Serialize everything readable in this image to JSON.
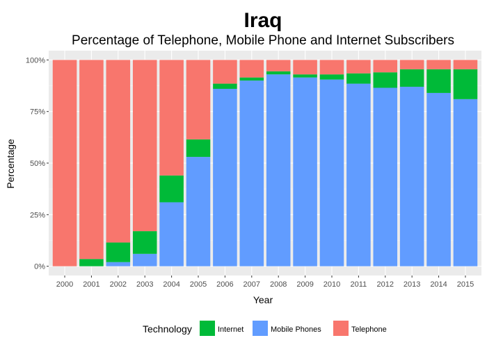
{
  "chart_data": {
    "type": "bar",
    "stacked": true,
    "title": "Iraq",
    "subtitle": "Percentage of Telephone, Mobile Phone and Internet Subscribers",
    "xlabel": "Year",
    "ylabel": "Percentage",
    "ylim": [
      0,
      1
    ],
    "yticks": [
      0,
      0.25,
      0.5,
      0.75,
      1.0
    ],
    "ytick_labels": [
      "0%",
      "25%",
      "50%",
      "75%",
      "100%"
    ],
    "categories": [
      "2000",
      "2001",
      "2002",
      "2003",
      "2004",
      "2005",
      "2006",
      "2007",
      "2008",
      "2009",
      "2010",
      "2011",
      "2012",
      "2013",
      "2014",
      "2015"
    ],
    "series": [
      {
        "name": "Mobile Phones",
        "color": "#619CFF",
        "values": [
          0.0,
          0.0,
          0.02,
          0.06,
          0.31,
          0.53,
          0.86,
          0.9,
          0.93,
          0.915,
          0.905,
          0.885,
          0.865,
          0.87,
          0.84,
          0.81
        ]
      },
      {
        "name": "Internet",
        "color": "#00BA38",
        "values": [
          0.0,
          0.035,
          0.095,
          0.11,
          0.13,
          0.085,
          0.025,
          0.015,
          0.015,
          0.015,
          0.025,
          0.05,
          0.075,
          0.085,
          0.115,
          0.145
        ]
      },
      {
        "name": "Telephone",
        "color": "#F8766D",
        "values": [
          1.0,
          0.965,
          0.885,
          0.83,
          0.56,
          0.385,
          0.115,
          0.085,
          0.055,
          0.07,
          0.07,
          0.065,
          0.06,
          0.045,
          0.045,
          0.045
        ]
      }
    ],
    "grid": true,
    "legend": {
      "title": "Technology",
      "position": "bottom",
      "items": [
        {
          "label": "Internet",
          "color": "#00BA38"
        },
        {
          "label": "Mobile Phones",
          "color": "#619CFF"
        },
        {
          "label": "Telephone",
          "color": "#F8766D"
        }
      ]
    }
  },
  "colors": {
    "panel_background": "#EBEBEB",
    "grid_major": "#FFFFFF",
    "grid_minor": "#F5F5F5"
  }
}
